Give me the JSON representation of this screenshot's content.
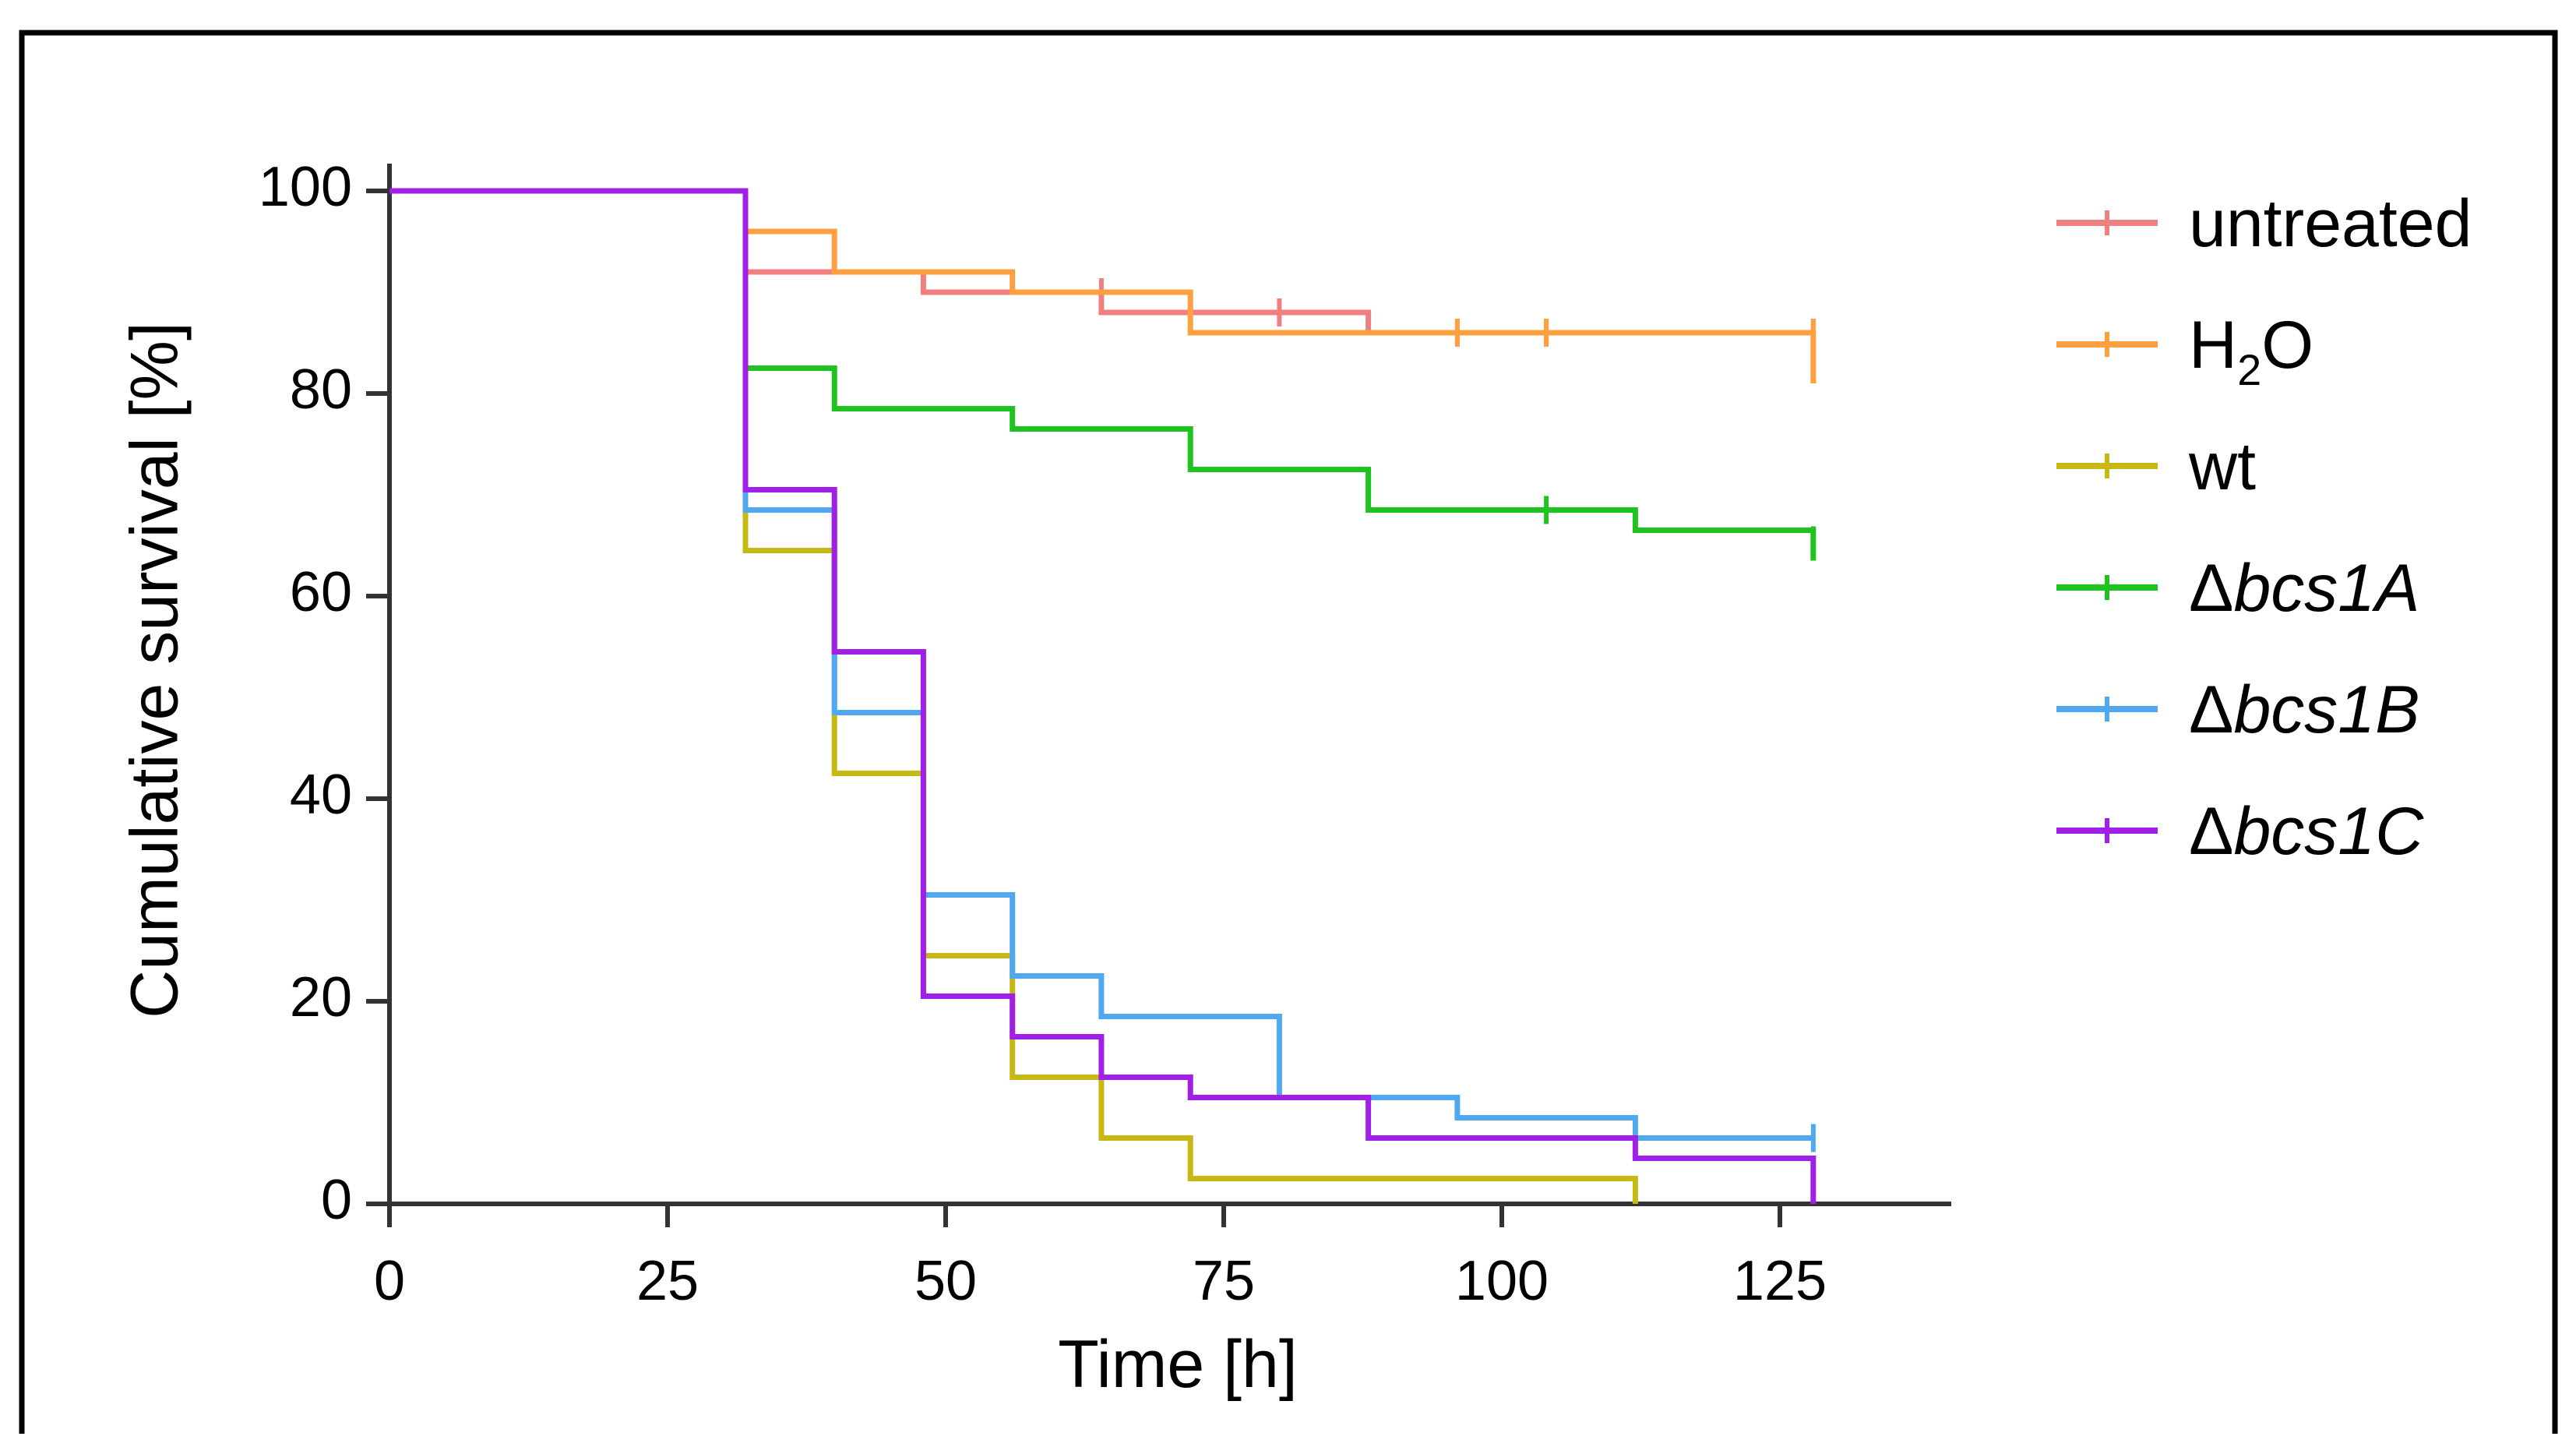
{
  "chart_data": {
    "type": "line",
    "subtype": "kaplan-meier step",
    "xlabel": "Time [h]",
    "ylabel": "Cumulative survival [%]",
    "xlim": [
      0,
      140
    ],
    "ylim": [
      0,
      100
    ],
    "xticks": [
      0,
      25,
      50,
      75,
      100,
      125
    ],
    "yticks": [
      0,
      20,
      40,
      60,
      80,
      100
    ],
    "xtick_labels": [
      "0",
      "25",
      "50",
      "75",
      "100",
      "125"
    ],
    "ytick_labels": [
      "0",
      "20",
      "40",
      "60",
      "80",
      "100"
    ],
    "legend_position": "right",
    "series": [
      {
        "name": "untreated",
        "label_main": "untreated",
        "label_prefix": "",
        "label_sub": "",
        "label_tail": "",
        "italic": false,
        "color": "#F08080",
        "steps": [
          [
            0,
            100
          ],
          [
            32,
            100
          ],
          [
            32,
            92
          ],
          [
            48,
            92
          ],
          [
            48,
            90
          ],
          [
            64,
            90
          ],
          [
            64,
            88
          ],
          [
            88,
            88
          ],
          [
            88,
            86
          ],
          [
            128,
            86
          ]
        ],
        "censor": [
          [
            64,
            90
          ],
          [
            80,
            88
          ],
          [
            96,
            86
          ],
          [
            104,
            86
          ],
          [
            128,
            86
          ]
        ]
      },
      {
        "name": "H2O",
        "label_main": "H",
        "label_prefix": "",
        "label_sub": "2",
        "label_tail": "O",
        "italic": false,
        "color": "#FFA040",
        "steps": [
          [
            0,
            100
          ],
          [
            32,
            100
          ],
          [
            32,
            96
          ],
          [
            40,
            96
          ],
          [
            40,
            92
          ],
          [
            56,
            92
          ],
          [
            56,
            90
          ],
          [
            72,
            90
          ],
          [
            72,
            86
          ],
          [
            128,
            86
          ],
          [
            128,
            81
          ]
        ],
        "censor": [
          [
            96,
            86
          ],
          [
            104,
            86
          ],
          [
            128,
            86
          ]
        ]
      },
      {
        "name": "wt",
        "label_main": "wt",
        "label_prefix": "",
        "label_sub": "",
        "label_tail": "",
        "italic": false,
        "color": "#C8B814",
        "steps": [
          [
            0,
            100
          ],
          [
            32,
            100
          ],
          [
            32,
            64.5
          ],
          [
            40,
            64.5
          ],
          [
            40,
            42.5
          ],
          [
            48,
            42.5
          ],
          [
            48,
            24.5
          ],
          [
            56,
            24.5
          ],
          [
            56,
            12.5
          ],
          [
            64,
            12.5
          ],
          [
            64,
            6.5
          ],
          [
            72,
            6.5
          ],
          [
            72,
            2.5
          ],
          [
            112,
            2.5
          ],
          [
            112,
            0
          ]
        ],
        "censor": []
      },
      {
        "name": "Δbcs1A",
        "label_main": "bcs1A",
        "label_prefix": "Δ",
        "label_sub": "",
        "label_tail": "",
        "italic": true,
        "color": "#1FC21F",
        "steps": [
          [
            0,
            100
          ],
          [
            32,
            100
          ],
          [
            32,
            82.5
          ],
          [
            40,
            82.5
          ],
          [
            40,
            78.5
          ],
          [
            56,
            78.5
          ],
          [
            56,
            76.5
          ],
          [
            72,
            76.5
          ],
          [
            72,
            72.5
          ],
          [
            88,
            72.5
          ],
          [
            88,
            68.5
          ],
          [
            112,
            68.5
          ],
          [
            112,
            66.5
          ],
          [
            128,
            66.5
          ],
          [
            128,
            63.5
          ]
        ],
        "censor": [
          [
            104,
            68.5
          ],
          [
            128,
            65.5
          ]
        ]
      },
      {
        "name": "Δbcs1B",
        "label_main": "bcs1B",
        "label_prefix": "Δ",
        "label_sub": "",
        "label_tail": "",
        "italic": true,
        "color": "#4FA8F0",
        "steps": [
          [
            0,
            100
          ],
          [
            32,
            100
          ],
          [
            32,
            68.5
          ],
          [
            40,
            68.5
          ],
          [
            40,
            48.5
          ],
          [
            48,
            48.5
          ],
          [
            48,
            30.5
          ],
          [
            56,
            30.5
          ],
          [
            56,
            22.5
          ],
          [
            64,
            22.5
          ],
          [
            64,
            18.5
          ],
          [
            80,
            18.5
          ],
          [
            80,
            10.5
          ],
          [
            96,
            10.5
          ],
          [
            96,
            8.5
          ],
          [
            112,
            8.5
          ],
          [
            112,
            6.5
          ],
          [
            128,
            6.5
          ]
        ],
        "censor": [
          [
            128,
            6.5
          ]
        ]
      },
      {
        "name": "Δbcs1C",
        "label_main": "bcs1C",
        "label_prefix": "Δ",
        "label_sub": "",
        "label_tail": "",
        "italic": true,
        "color": "#A020E8",
        "steps": [
          [
            0,
            100
          ],
          [
            32,
            100
          ],
          [
            32,
            70.5
          ],
          [
            40,
            70.5
          ],
          [
            40,
            54.5
          ],
          [
            48,
            54.5
          ],
          [
            48,
            20.5
          ],
          [
            56,
            20.5
          ],
          [
            56,
            16.5
          ],
          [
            64,
            16.5
          ],
          [
            64,
            12.5
          ],
          [
            72,
            12.5
          ],
          [
            72,
            10.5
          ],
          [
            88,
            10.5
          ],
          [
            88,
            6.5
          ],
          [
            112,
            6.5
          ],
          [
            112,
            4.5
          ],
          [
            128,
            4.5
          ],
          [
            128,
            0
          ]
        ],
        "censor": []
      }
    ]
  }
}
